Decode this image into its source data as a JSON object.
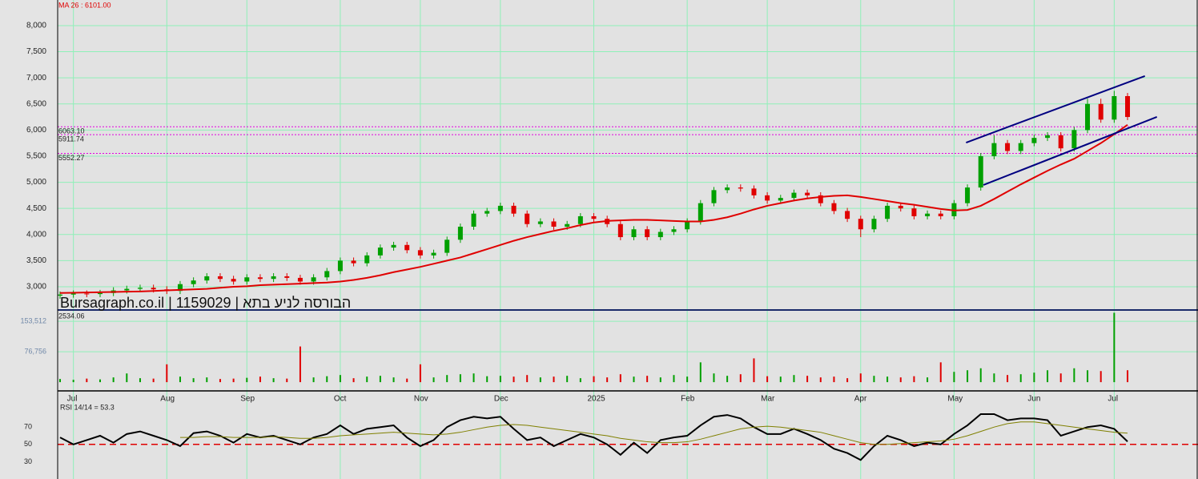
{
  "chart_data": [
    {
      "type": "candlestick",
      "ma_label": "MA 26 : 6101.00",
      "watermark": "Bursagraph.co.il | 1159029 | הבורסה לניע בתא",
      "level_note": 2534.06,
      "xlim": [
        -0.18,
        85.28
      ],
      "ylim": [
        2555,
        8490
      ],
      "yticks": [
        {
          "value": 8000,
          "label": "8,000"
        },
        {
          "value": 7500,
          "label": "7,500"
        },
        {
          "value": 7000,
          "label": "7,000"
        },
        {
          "value": 6500,
          "label": "6,500"
        },
        {
          "value": 6000,
          "label": "6,000"
        },
        {
          "value": 5500,
          "label": "5,500"
        },
        {
          "value": 5000,
          "label": "5,000"
        },
        {
          "value": 4500,
          "label": "4,500"
        },
        {
          "value": 4000,
          "label": "4,000"
        },
        {
          "value": 3500,
          "label": "3,500"
        },
        {
          "value": 3000,
          "label": "3,000"
        }
      ],
      "grid": true,
      "up_color": "#00a000",
      "down_color": "#e00000",
      "open": [
        2830,
        2850,
        2870,
        2860,
        2880,
        2930,
        2960,
        2980,
        2950,
        2920,
        3050,
        3120,
        3200,
        3150,
        3100,
        3180,
        3150,
        3200,
        3170,
        3100,
        3180,
        3300,
        3500,
        3450,
        3600,
        3750,
        3800,
        3700,
        3600,
        3650,
        3900,
        4150,
        4400,
        4450,
        4550,
        4400,
        4200,
        4250,
        4150,
        4200,
        4350,
        4300,
        4200,
        3950,
        4100,
        3950,
        4050,
        4100,
        4250,
        4600,
        4850,
        4900,
        4880,
        4750,
        4650,
        4700,
        4800,
        4750,
        4600,
        4450,
        4300,
        4100,
        4300,
        4550,
        4500,
        4350,
        4400,
        4350,
        4600,
        4900,
        5500,
        5750,
        5600,
        5750,
        5850,
        5900,
        5650,
        6000,
        6500,
        6200,
        6650
      ],
      "high": [
        2910,
        2930,
        2930,
        2940,
        2990,
        3020,
        3040,
        3040,
        3010,
        3110,
        3180,
        3260,
        3260,
        3210,
        3240,
        3240,
        3260,
        3260,
        3230,
        3240,
        3360,
        3560,
        3560,
        3660,
        3810,
        3860,
        3860,
        3760,
        3710,
        3960,
        4210,
        4460,
        4510,
        4610,
        4610,
        4460,
        4310,
        4310,
        4260,
        4410,
        4410,
        4360,
        4260,
        4160,
        4160,
        4110,
        4160,
        4310,
        4660,
        4910,
        4960,
        4960,
        4940,
        4810,
        4760,
        4860,
        4860,
        4810,
        4660,
        4510,
        4360,
        4360,
        4610,
        4610,
        4560,
        4460,
        4460,
        4660,
        4960,
        5560,
        5900,
        5810,
        5810,
        5910,
        5960,
        5960,
        6060,
        6600,
        6600,
        6750,
        6710
      ],
      "low": [
        2770,
        2790,
        2800,
        2800,
        2820,
        2870,
        2900,
        2890,
        2860,
        2860,
        2990,
        3060,
        3090,
        3040,
        3040,
        3090,
        3090,
        3110,
        3040,
        3040,
        3120,
        3240,
        3390,
        3390,
        3540,
        3690,
        3640,
        3540,
        3540,
        3590,
        3840,
        4090,
        4340,
        4390,
        4340,
        4140,
        4140,
        4090,
        4090,
        4140,
        4240,
        4140,
        3890,
        3890,
        3890,
        3890,
        3990,
        4040,
        4190,
        4540,
        4790,
        4820,
        4690,
        4590,
        4590,
        4640,
        4690,
        4540,
        4390,
        4240,
        3950,
        4040,
        4240,
        4440,
        4290,
        4290,
        4290,
        4290,
        4540,
        4840,
        5440,
        5540,
        5540,
        5690,
        5790,
        5590,
        5590,
        5940,
        6140,
        6140,
        6190
      ],
      "close": [
        2850,
        2870,
        2860,
        2880,
        2930,
        2960,
        2980,
        2950,
        2920,
        3050,
        3120,
        3200,
        3150,
        3100,
        3180,
        3150,
        3200,
        3170,
        3100,
        3180,
        3300,
        3500,
        3450,
        3600,
        3750,
        3800,
        3700,
        3600,
        3650,
        3900,
        4150,
        4400,
        4450,
        4550,
        4400,
        4200,
        4250,
        4150,
        4200,
        4350,
        4300,
        4200,
        3950,
        4100,
        3950,
        4050,
        4100,
        4250,
        4600,
        4850,
        4900,
        4880,
        4750,
        4650,
        4700,
        4800,
        4750,
        4600,
        4450,
        4300,
        4100,
        4300,
        4550,
        4500,
        4350,
        4400,
        4350,
        4600,
        4900,
        5500,
        5750,
        5600,
        5750,
        5850,
        5900,
        5650,
        6000,
        6500,
        6200,
        6650,
        6250
      ],
      "ma": {
        "color": "#e00000",
        "values": [
          2880,
          2885,
          2890,
          2895,
          2900,
          2905,
          2910,
          2920,
          2930,
          2940,
          2950,
          2960,
          2980,
          3000,
          3010,
          3030,
          3040,
          3050,
          3060,
          3070,
          3080,
          3100,
          3130,
          3170,
          3220,
          3280,
          3330,
          3380,
          3440,
          3500,
          3560,
          3640,
          3720,
          3800,
          3880,
          3950,
          4010,
          4070,
          4120,
          4180,
          4230,
          4260,
          4270,
          4280,
          4280,
          4270,
          4260,
          4250,
          4250,
          4280,
          4330,
          4400,
          4480,
          4550,
          4600,
          4650,
          4690,
          4720,
          4740,
          4750,
          4720,
          4680,
          4640,
          4600,
          4570,
          4530,
          4490,
          4460,
          4470,
          4550,
          4680,
          4820,
          4960,
          5090,
          5220,
          5340,
          5450,
          5600,
          5750,
          5920,
          6100
        ]
      },
      "levels": {
        "color": "#e000e0",
        "values": [
          {
            "value": 6063.1,
            "label": "6063.10"
          },
          5911.74,
          5552.27
        ]
      },
      "trendlines": {
        "color": "#000080",
        "lines": [
          {
            "x": [
              67.9,
              81.3
            ],
            "y": [
              5760,
              7034
            ]
          },
          {
            "x": [
              69.2,
              82.2
            ],
            "y": [
              4948,
              6252
            ]
          }
        ]
      }
    },
    {
      "type": "bar",
      "ylim": [
        -20000,
        180000
      ],
      "yticks": [
        {
          "value": 153512,
          "label": "153,512"
        },
        {
          "value": 76756,
          "label": "76,756"
        }
      ],
      "grid": true,
      "xticks": [
        {
          "value": 1,
          "label": "Jul"
        },
        {
          "value": 8,
          "label": "Aug"
        },
        {
          "value": 14,
          "label": "Sep"
        },
        {
          "value": 21,
          "label": "Oct"
        },
        {
          "value": 27,
          "label": "Nov"
        },
        {
          "value": 33,
          "label": "Dec"
        },
        {
          "value": 40,
          "label": "2025"
        },
        {
          "value": 47,
          "label": "Feb"
        },
        {
          "value": 53,
          "label": "Mar"
        },
        {
          "value": 60,
          "label": "Apr"
        },
        {
          "value": 67,
          "label": "May"
        },
        {
          "value": 73,
          "label": "Jun"
        },
        {
          "value": 79,
          "label": "Jul"
        }
      ],
      "values": [
        8000,
        6000,
        9000,
        7000,
        12000,
        22000,
        10000,
        9000,
        45000,
        14000,
        10000,
        12000,
        8000,
        9000,
        11000,
        14000,
        10000,
        9000,
        90000,
        12000,
        15000,
        18000,
        10000,
        14000,
        16000,
        12000,
        9000,
        45000,
        12000,
        18000,
        20000,
        22000,
        15000,
        16000,
        14000,
        18000,
        12000,
        14000,
        16000,
        10000,
        15000,
        12000,
        20000,
        14000,
        16000,
        12000,
        18000,
        14000,
        50000,
        22000,
        16000,
        20000,
        60000,
        15000,
        14000,
        18000,
        16000,
        12000,
        14000,
        10000,
        22000,
        16000,
        14000,
        12000,
        15000,
        12000,
        50000,
        26000,
        30000,
        35000,
        22000,
        18000,
        20000,
        24000,
        30000,
        22000,
        35000,
        30000,
        28000,
        175000,
        30000
      ]
    },
    {
      "type": "line",
      "title": "RSI 14/14 = 53.3",
      "ylim": [
        10,
        110
      ],
      "yticks": [
        70,
        50,
        30
      ],
      "grid": false,
      "reference": {
        "value": 50,
        "color": "#e00000"
      },
      "series": [
        {
          "color": "#000000",
          "values": [
            58,
            50,
            55,
            60,
            52,
            62,
            65,
            60,
            55,
            48,
            63,
            65,
            60,
            52,
            62,
            58,
            60,
            55,
            50,
            58,
            62,
            72,
            62,
            68,
            70,
            72,
            58,
            48,
            55,
            70,
            78,
            82,
            80,
            82,
            68,
            55,
            58,
            48,
            55,
            62,
            58,
            50,
            38,
            52,
            40,
            55,
            58,
            60,
            72,
            82,
            84,
            80,
            70,
            62,
            62,
            68,
            62,
            55,
            45,
            40,
            32,
            48,
            60,
            55,
            48,
            52,
            50,
            62,
            72,
            85,
            85,
            78,
            80,
            80,
            78,
            60,
            65,
            70,
            72,
            68,
            53.3
          ]
        },
        {
          "color": "#808000",
          "values": [
            null,
            null,
            null,
            null,
            null,
            null,
            null,
            null,
            null,
            58,
            58,
            59,
            59,
            58,
            58,
            58,
            59,
            58,
            57,
            57,
            58,
            60,
            61,
            62,
            63,
            64,
            63,
            62,
            61,
            62,
            64,
            67,
            70,
            72,
            73,
            72,
            70,
            68,
            66,
            64,
            62,
            60,
            57,
            55,
            53,
            52,
            52,
            53,
            56,
            60,
            64,
            68,
            70,
            71,
            70,
            68,
            66,
            64,
            60,
            56,
            52,
            50,
            50,
            51,
            52,
            53,
            54,
            56,
            60,
            65,
            70,
            74,
            76,
            76,
            74,
            72,
            70,
            68,
            66,
            64,
            63
          ]
        }
      ]
    }
  ]
}
